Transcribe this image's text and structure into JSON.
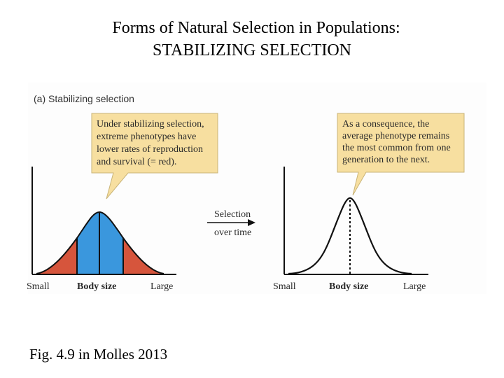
{
  "title": {
    "line1": "Forms of Natural Selection in Populations:",
    "line2": "STABILIZING SELECTION"
  },
  "figure": {
    "panel_label": "(a) Stabilizing selection",
    "left_callout": {
      "lines": [
        "Under stabilizing selection,",
        "extreme phenotypes have",
        "lower rates of reproduction",
        "and survival (= red)."
      ]
    },
    "right_callout": {
      "lines": [
        "As a consequence, the",
        "average phenotype remains",
        "the most common from one",
        "generation to the next."
      ]
    },
    "arrow": {
      "label_top": "Selection",
      "label_bottom": "over time"
    },
    "left_axis": {
      "small": "Small",
      "middle": "Body size",
      "large": "Large"
    },
    "right_axis": {
      "small": "Small",
      "middle": "Body size",
      "large": "Large"
    },
    "colors": {
      "callout_fill": "#f7dfa0",
      "callout_stroke": "#c9b478",
      "blue": "#3a97dd",
      "red": "#d6553c",
      "line": "#111111"
    }
  },
  "caption": "Fig. 4.9 in Molles 2013"
}
